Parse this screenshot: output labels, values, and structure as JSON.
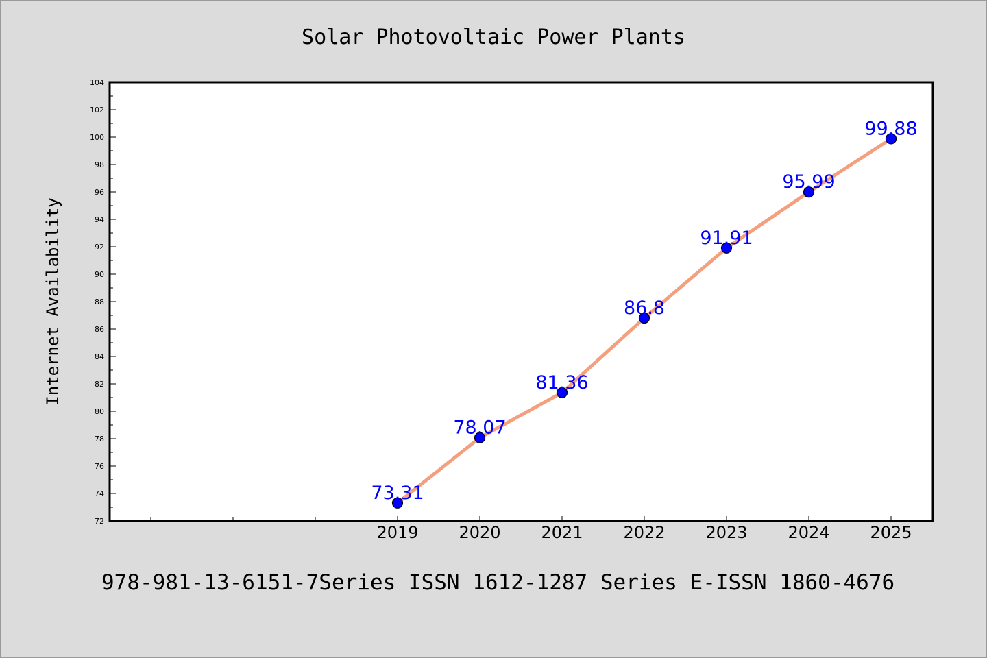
{
  "footer": {
    "caption": "978-981-13-6151-7Series ISSN 1612-1287 Series E-ISSN 1860-4676"
  },
  "colors": {
    "background": "#dcdcdc",
    "plot_background": "#ffffff",
    "line": "#f4a07e",
    "marker": "#0000ff",
    "data_label": "#0000ff"
  },
  "chart_data": {
    "type": "line",
    "title": "Solar Photovoltaic Power Plants",
    "xlabel": "",
    "ylabel": "Internet Availability",
    "x": [
      "2019",
      "2020",
      "2021",
      "2022",
      "2023",
      "2024",
      "2025"
    ],
    "series": [
      {
        "values": [
          73.31,
          78.07,
          81.36,
          86.8,
          91.91,
          95.99,
          99.88
        ],
        "data_labels": [
          "73.31",
          "78.07",
          "81.36",
          "86.8",
          "91.91",
          "95.99",
          "99.88"
        ]
      }
    ],
    "ylim": [
      72,
      104
    ],
    "yticks": [
      72,
      74,
      76,
      78,
      80,
      82,
      84,
      86,
      88,
      90,
      92,
      94,
      96,
      98,
      100,
      102,
      104
    ],
    "grid": false,
    "legend": "none"
  }
}
